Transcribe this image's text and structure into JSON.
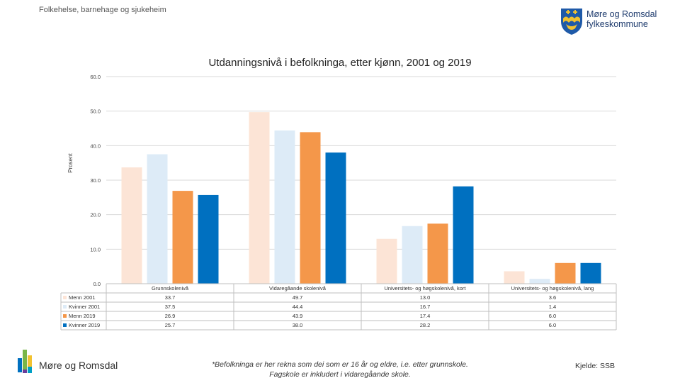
{
  "header": {
    "breadcrumb": "Folkehelse, barnehage og sjukeheim",
    "logo_line1": "Møre og Romsdal",
    "logo_line2": "fylkeskommune"
  },
  "chart_data": {
    "type": "bar",
    "title": "Utdanningsnivå i befolkninga, etter kjønn, 2001 og 2019",
    "ylabel": "Prosent",
    "ylim": [
      0,
      60
    ],
    "yticks": [
      "0.0",
      "10.0",
      "20.0",
      "30.0",
      "40.0",
      "50.0",
      "60.0"
    ],
    "grid": true,
    "legend": "data-table-left",
    "categories": [
      "Grunnskolenivå",
      "Vidaregåande skolenivå",
      "Universitets- og høgskolenivå, kort",
      "Universitets- og høgskolenivå, lang"
    ],
    "series": [
      {
        "name": "Menn 2001",
        "color": "#fce4d6",
        "values": [
          33.7,
          49.7,
          13.0,
          3.6
        ],
        "labels": [
          "33.7",
          "49.7",
          "13.0",
          "3.6"
        ]
      },
      {
        "name": "Kvinner 2001",
        "color": "#ddebf7",
        "values": [
          37.5,
          44.4,
          16.7,
          1.4
        ],
        "labels": [
          "37.5",
          "44.4",
          "16.7",
          "1.4"
        ]
      },
      {
        "name": "Menn 2019",
        "color": "#f4974a",
        "values": [
          26.9,
          43.9,
          17.4,
          6.0
        ],
        "labels": [
          "26.9",
          "43.9",
          "17.4",
          "6.0"
        ]
      },
      {
        "name": "Kvinner 2019",
        "color": "#0070c0",
        "values": [
          25.7,
          38.0,
          28.2,
          6.0
        ],
        "labels": [
          "25.7",
          "38.0",
          "28.2",
          "6.0"
        ]
      }
    ]
  },
  "footer": {
    "logo_text": "Møre og Romsdal",
    "footnote_line1": "*Befolkninga er her rekna som dei som er 16 år og eldre, i.e. etter grunnskole.",
    "footnote_line2": "Fagskole er inkludert i vidaregåande skole.",
    "source": "Kjelde: SSB"
  }
}
